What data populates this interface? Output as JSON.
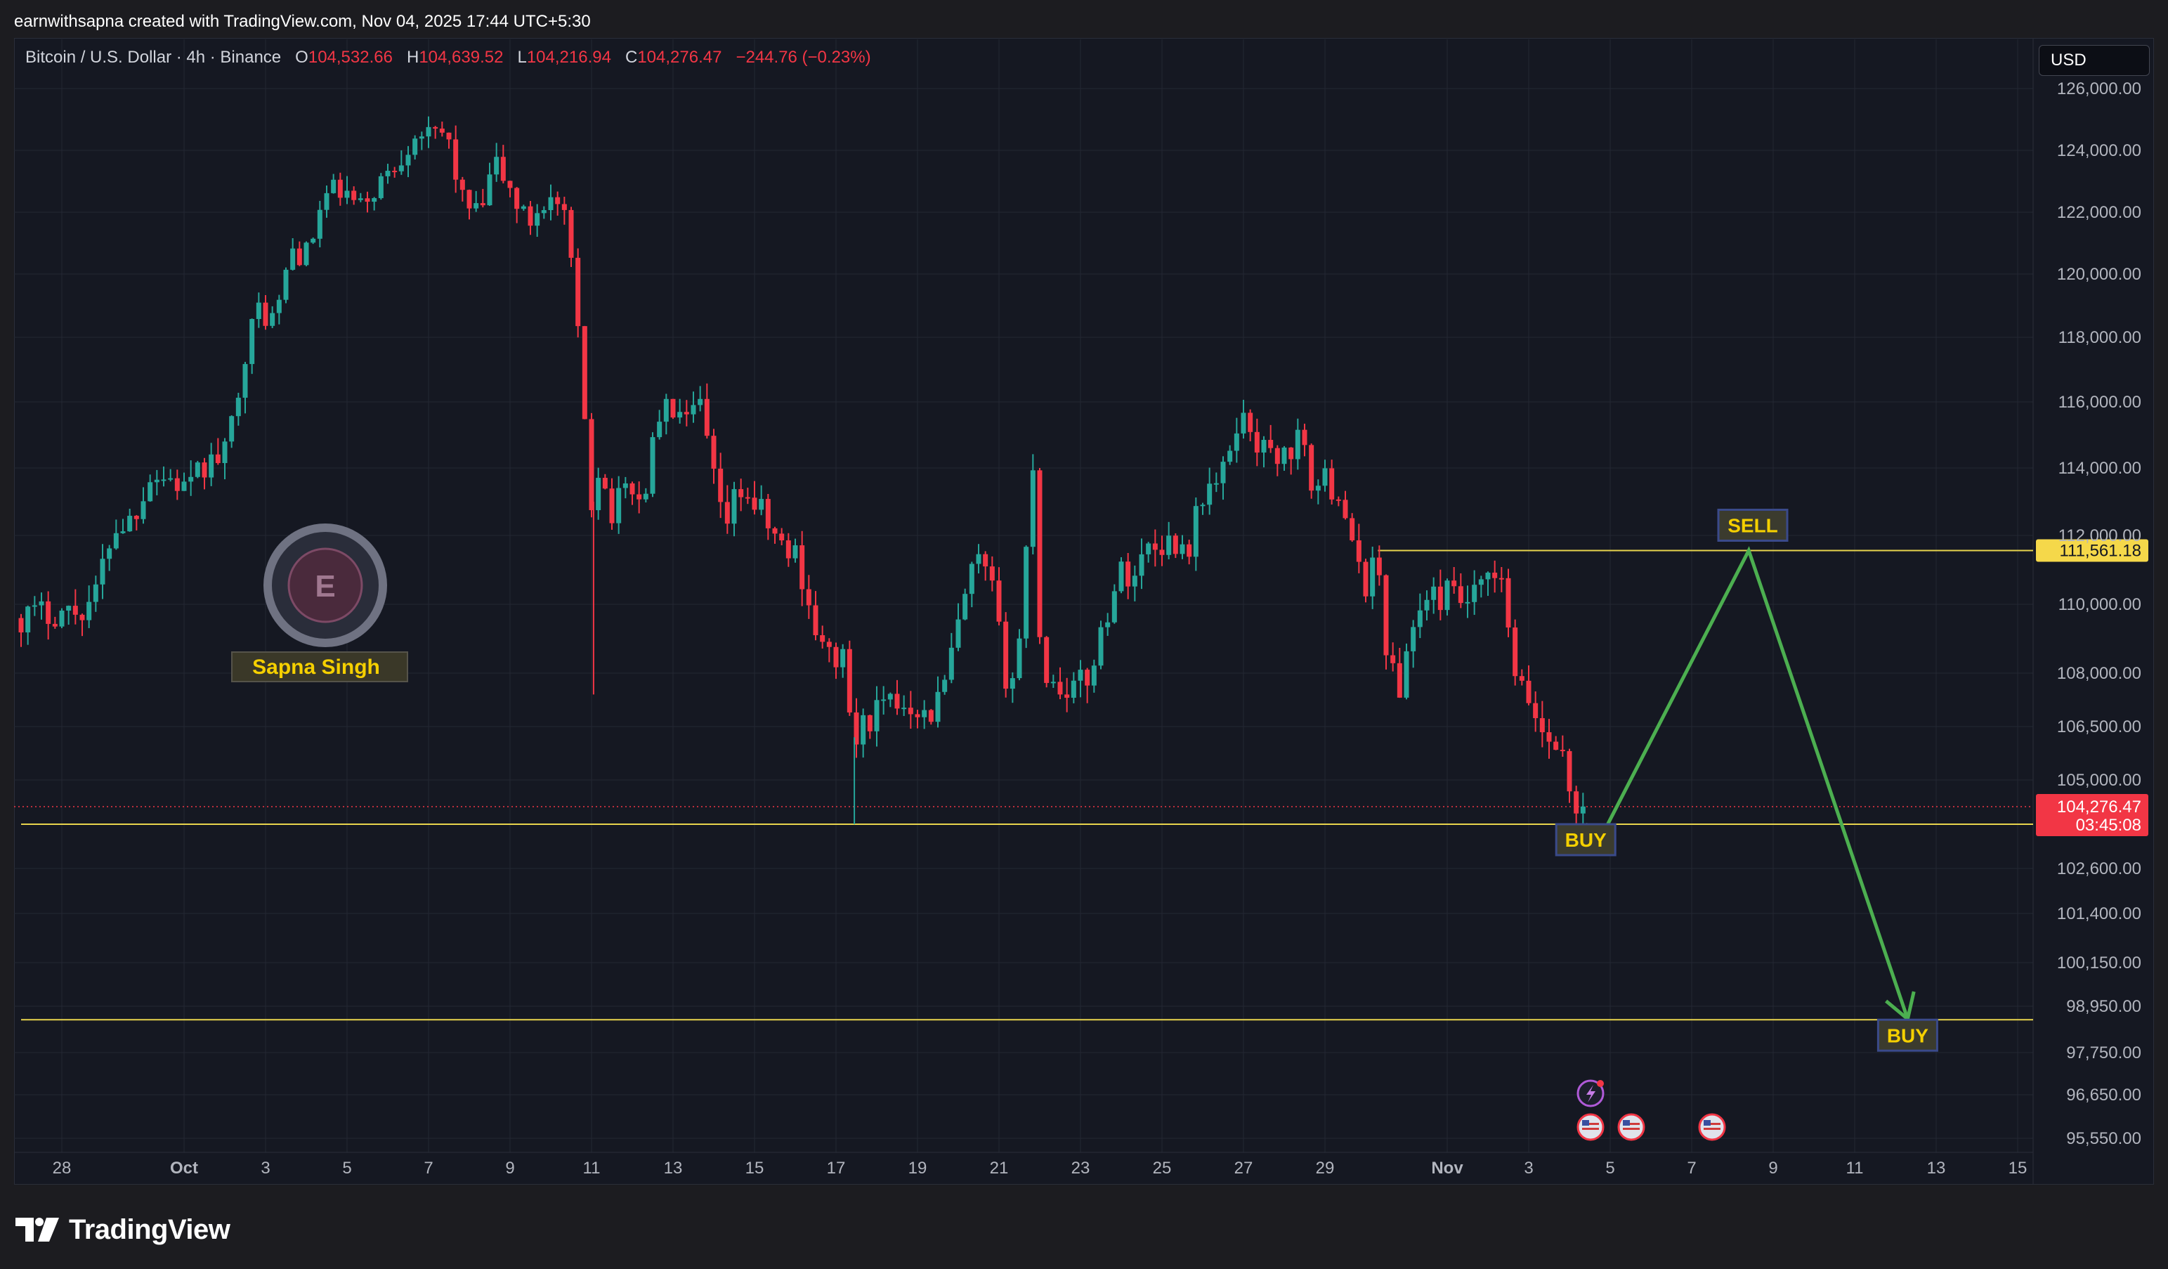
{
  "header": {
    "caption": "earnwithsapna created with TradingView.com, Nov 04, 2025 17:44 UTC+5:30"
  },
  "symbol": {
    "name": "Bitcoin / U.S. Dollar · 4h · Binance",
    "open_label": "O",
    "open": "104,532.66",
    "high_label": "H",
    "high": "104,639.52",
    "low_label": "L",
    "low": "104,216.94",
    "close_label": "C",
    "close": "104,276.47",
    "change": "−244.76 (−0.23%)"
  },
  "currency_button": "USD",
  "watermark": {
    "name": "Sapna Singh"
  },
  "branding": {
    "logo_text": "TradingView"
  },
  "colors": {
    "up": "#26a69a",
    "down": "#f23645",
    "level": "#e8d44d",
    "arrow": "#4caf50",
    "background": "#151822",
    "grid": "#232733"
  },
  "chart_data": {
    "type": "candlestick",
    "y_scale": "non-linear (labels follow price axis ticks)",
    "yaxis_ticks": [
      {
        "value": 126000,
        "label": "126,000.00"
      },
      {
        "value": 124000,
        "label": "124,000.00"
      },
      {
        "value": 122000,
        "label": "122,000.00"
      },
      {
        "value": 120000,
        "label": "120,000.00"
      },
      {
        "value": 118000,
        "label": "118,000.00"
      },
      {
        "value": 116000,
        "label": "116,000.00"
      },
      {
        "value": 114000,
        "label": "114,000.00"
      },
      {
        "value": 112000,
        "label": "112,000.00"
      },
      {
        "value": 110000,
        "label": "110,000.00"
      },
      {
        "value": 108000,
        "label": "108,000.00"
      },
      {
        "value": 106500,
        "label": "106,500.00"
      },
      {
        "value": 105000,
        "label": "105,000.00"
      },
      {
        "value": 102600,
        "label": "102,600.00"
      },
      {
        "value": 101400,
        "label": "101,400.00"
      },
      {
        "value": 100150,
        "label": "100,150.00"
      },
      {
        "value": 98950,
        "label": "98,950.00"
      },
      {
        "value": 97750,
        "label": "97,750.00"
      },
      {
        "value": 96650,
        "label": "96,650.00"
      },
      {
        "value": 95550,
        "label": "95,550.00"
      }
    ],
    "xaxis_ticks": [
      {
        "day": -2,
        "label": "28"
      },
      {
        "day": 1,
        "label": "Oct",
        "bold": true
      },
      {
        "day": 3,
        "label": "3"
      },
      {
        "day": 5,
        "label": "5"
      },
      {
        "day": 7,
        "label": "7"
      },
      {
        "day": 9,
        "label": "9"
      },
      {
        "day": 11,
        "label": "11"
      },
      {
        "day": 13,
        "label": "13"
      },
      {
        "day": 15,
        "label": "15"
      },
      {
        "day": 17,
        "label": "17"
      },
      {
        "day": 19,
        "label": "19"
      },
      {
        "day": 21,
        "label": "21"
      },
      {
        "day": 23,
        "label": "23"
      },
      {
        "day": 25,
        "label": "25"
      },
      {
        "day": 27,
        "label": "27"
      },
      {
        "day": 29,
        "label": "29"
      },
      {
        "day": 32,
        "label": "Nov",
        "bold": true
      },
      {
        "day": 34,
        "label": "3"
      },
      {
        "day": 36,
        "label": "5"
      },
      {
        "day": 38,
        "label": "7"
      },
      {
        "day": 40,
        "label": "9"
      },
      {
        "day": 42,
        "label": "11"
      },
      {
        "day": 44,
        "label": "13"
      },
      {
        "day": 46,
        "label": "15"
      }
    ],
    "price_path": [
      [
        -3.0,
        109600
      ],
      [
        -2.0,
        109800
      ],
      [
        -1.4,
        109800
      ],
      [
        -1.0,
        110300
      ],
      [
        -0.6,
        112200
      ],
      [
        -0.1,
        112500
      ],
      [
        0.3,
        113800
      ],
      [
        0.8,
        113700
      ],
      [
        1.3,
        113300
      ],
      [
        1.6,
        114000
      ],
      [
        2.0,
        114300
      ],
      [
        2.2,
        114400
      ],
      [
        2.6,
        117300
      ],
      [
        3.0,
        118900
      ],
      [
        3.4,
        118500
      ],
      [
        3.8,
        120800
      ],
      [
        4.2,
        120600
      ],
      [
        4.6,
        122500
      ],
      [
        5.0,
        122700
      ],
      [
        5.5,
        122100
      ],
      [
        5.9,
        122900
      ],
      [
        6.3,
        123400
      ],
      [
        6.6,
        124100
      ],
      [
        6.9,
        124800
      ],
      [
        7.2,
        124300
      ],
      [
        7.6,
        124600
      ],
      [
        8.0,
        122400
      ],
      [
        8.4,
        121800
      ],
      [
        8.8,
        123600
      ],
      [
        9.2,
        122600
      ],
      [
        9.6,
        121600
      ],
      [
        10.0,
        122400
      ],
      [
        10.3,
        122300
      ],
      [
        10.6,
        121300
      ],
      [
        11.0,
        115500
      ],
      [
        11.1,
        112500
      ],
      [
        11.3,
        114200
      ],
      [
        11.7,
        112600
      ],
      [
        12.1,
        113700
      ],
      [
        12.4,
        112800
      ],
      [
        12.8,
        115600
      ],
      [
        13.2,
        115800
      ],
      [
        13.5,
        115200
      ],
      [
        13.8,
        116000
      ],
      [
        14.1,
        114100
      ],
      [
        14.4,
        112100
      ],
      [
        14.8,
        113400
      ],
      [
        15.2,
        112900
      ],
      [
        15.5,
        112300
      ],
      [
        15.9,
        111500
      ],
      [
        16.2,
        111500
      ],
      [
        16.5,
        110000
      ],
      [
        16.9,
        108400
      ],
      [
        17.3,
        108600
      ],
      [
        17.6,
        106000
      ],
      [
        18.0,
        106800
      ],
      [
        18.4,
        107000
      ],
      [
        18.8,
        107200
      ],
      [
        19.1,
        107200
      ],
      [
        19.4,
        106700
      ],
      [
        19.8,
        107500
      ],
      [
        20.2,
        109500
      ],
      [
        20.6,
        111300
      ],
      [
        21.0,
        110400
      ],
      [
        21.3,
        108000
      ],
      [
        21.6,
        107900
      ],
      [
        22.0,
        114200
      ],
      [
        22.2,
        108200
      ],
      [
        22.5,
        107700
      ],
      [
        22.9,
        107600
      ],
      [
        23.3,
        107700
      ],
      [
        23.7,
        109300
      ],
      [
        24.1,
        110900
      ],
      [
        24.5,
        110900
      ],
      [
        24.8,
        111700
      ],
      [
        25.2,
        111800
      ],
      [
        25.5,
        111800
      ],
      [
        25.8,
        111600
      ],
      [
        26.2,
        113400
      ],
      [
        26.6,
        113500
      ],
      [
        27.0,
        115400
      ],
      [
        27.3,
        115400
      ],
      [
        27.6,
        114500
      ],
      [
        27.9,
        114500
      ],
      [
        28.2,
        114300
      ],
      [
        28.5,
        114900
      ],
      [
        28.9,
        113400
      ],
      [
        29.2,
        113600
      ],
      [
        29.6,
        113200
      ],
      [
        29.9,
        111000
      ],
      [
        30.2,
        110600
      ],
      [
        30.4,
        111600
      ],
      [
        30.7,
        108600
      ],
      [
        31.0,
        107300
      ],
      [
        31.2,
        109000
      ],
      [
        31.5,
        109900
      ],
      [
        31.9,
        110200
      ],
      [
        32.2,
        110300
      ],
      [
        32.6,
        110000
      ],
      [
        32.9,
        110200
      ],
      [
        33.2,
        110800
      ],
      [
        33.6,
        110300
      ],
      [
        33.8,
        107700
      ],
      [
        34.2,
        107200
      ],
      [
        34.6,
        106100
      ],
      [
        34.9,
        106200
      ],
      [
        35.2,
        104400
      ],
      [
        35.45,
        104280
      ]
    ],
    "levels": [
      {
        "price": 111561.18,
        "label": "111,561.18",
        "from_day": 30.3
      },
      {
        "price": 103800,
        "from_day": -3.0
      },
      {
        "price": 98600,
        "from_day": -3.0
      }
    ],
    "current_price": {
      "value": "104,276.47",
      "countdown": "03:45:08",
      "price": 104276.47
    },
    "projection": [
      {
        "day": 35.4,
        "price": 103800
      },
      {
        "day": 35.8,
        "price": 103500
      },
      {
        "day": 39.4,
        "price": 111561.18
      },
      {
        "day": 43.3,
        "price": 98620
      }
    ],
    "annotations": [
      {
        "text": "BUY",
        "day": 35.4,
        "price": 103800
      },
      {
        "text": "SELL",
        "day": 39.5,
        "price": 111561.18
      },
      {
        "text": "BUY",
        "day": 43.3,
        "price": 98600
      }
    ]
  }
}
